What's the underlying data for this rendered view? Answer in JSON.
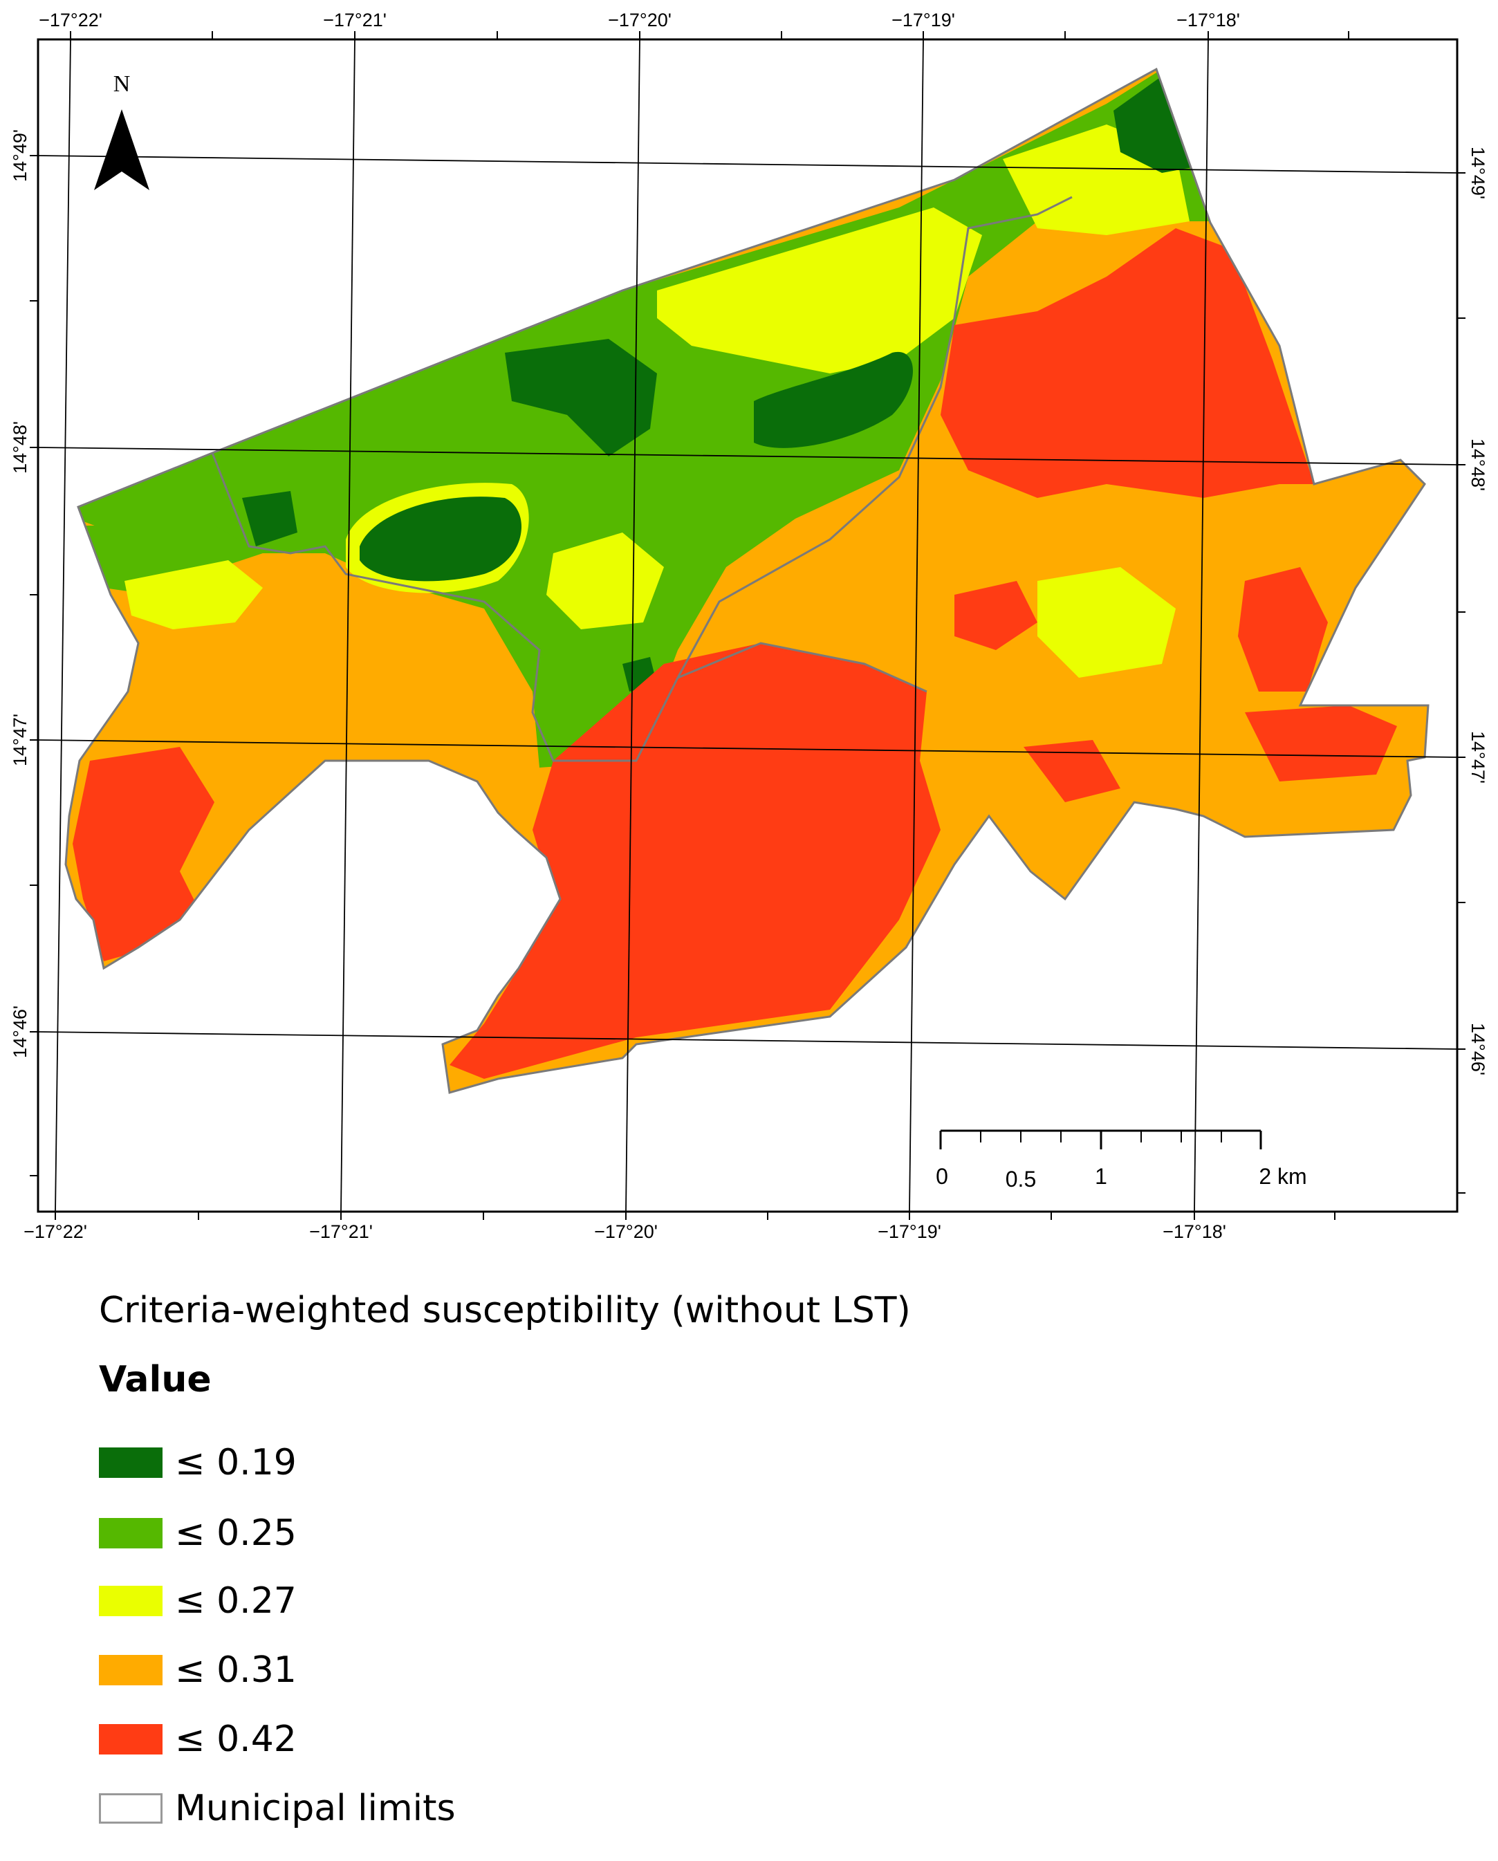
{
  "map": {
    "top_lon_labels": [
      "−17°22'",
      "−17°21'",
      "−17°20'",
      "−17°19'",
      "−17°18'"
    ],
    "bottom_lon_labels": [
      "−17°22'",
      "−17°21'",
      "−17°20'",
      "−17°19'",
      "−17°18'"
    ],
    "left_lat_labels": [
      "14°49'",
      "14°48'",
      "14°47'",
      "14°46'"
    ],
    "right_lat_labels": [
      "14°49'",
      "14°48'",
      "14°47'",
      "14°46'"
    ],
    "north_arrow_label": "N",
    "scale_bar": {
      "labels": [
        "0",
        "0.5",
        "1",
        "2 km"
      ]
    }
  },
  "legend": {
    "title": "Criteria-weighted susceptibility (without LST)",
    "subtitle": "Value",
    "items": [
      {
        "label": "≤ 0.19",
        "color": "#0a6e0a"
      },
      {
        "label": "≤ 0.25",
        "color": "#55b800"
      },
      {
        "label": "≤ 0.27",
        "color": "#eaff00"
      },
      {
        "label": "≤ 0.31",
        "color": "#ffab00"
      },
      {
        "label": "≤ 0.42",
        "color": "#ff3c14"
      },
      {
        "label": "Municipal limits",
        "color": "#ffffff"
      }
    ]
  }
}
